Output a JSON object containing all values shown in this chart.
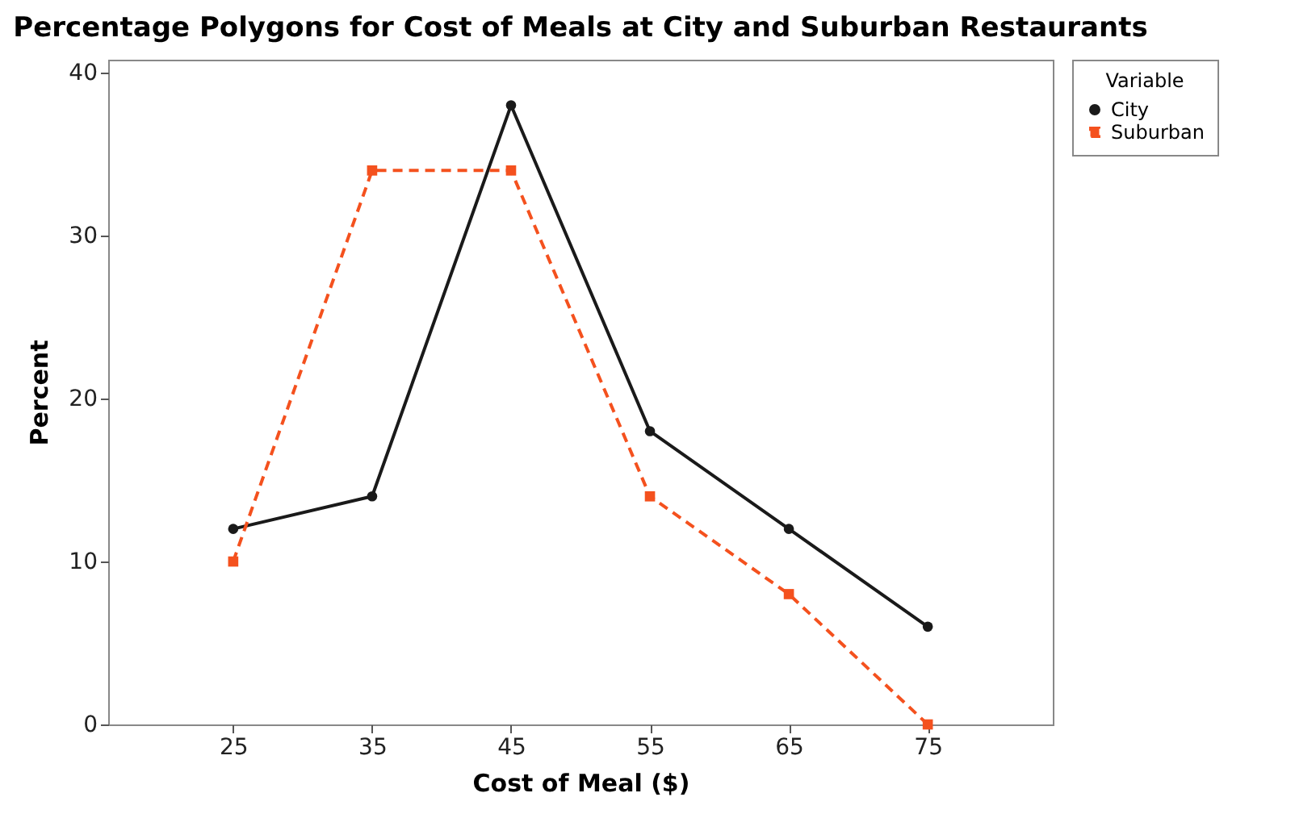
{
  "chart_data": {
    "type": "line",
    "title": "Percentage Polygons for Cost of Meals at City and Suburban Restaurants",
    "xlabel": "Cost of Meal ($)",
    "ylabel": "Percent",
    "legend_title": "Variable",
    "legend": "right",
    "grid": false,
    "x": [
      25,
      35,
      45,
      55,
      65,
      75
    ],
    "xlim": [
      16,
      84
    ],
    "xticks": [
      25,
      35,
      45,
      55,
      65,
      75
    ],
    "ylim": [
      0,
      40.8
    ],
    "yticks": [
      0,
      10,
      20,
      30,
      40
    ],
    "series": [
      {
        "name": "City",
        "color": "#1a1a1a",
        "marker": "circle",
        "line_style": "solid",
        "values": [
          12,
          14,
          38,
          18,
          12,
          6
        ]
      },
      {
        "name": "Suburban",
        "color": "#f4511e",
        "marker": "square",
        "line_style": "dashed",
        "values": [
          10,
          34,
          34,
          14,
          8,
          0
        ]
      }
    ]
  }
}
